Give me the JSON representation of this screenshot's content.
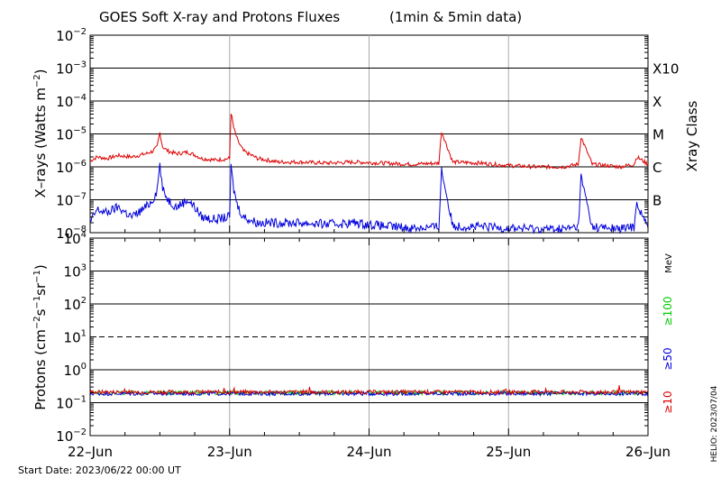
{
  "chart_data": [
    {
      "type": "line",
      "title": "GOES Soft X-ray and Protons Fluxes",
      "title_note": "(1min & 5min data)",
      "ylabel": "X-rays (Watts m^-2)",
      "ylabel_parts": {
        "prefix": "X–rays (Watts m",
        "sup": "−2",
        "suffix": ")"
      },
      "yscale": "log",
      "ylim": [
        1e-08,
        0.01
      ],
      "y_tick_exponents": [
        -8,
        -7,
        -6,
        -5,
        -4,
        -3,
        -2
      ],
      "x_ticks": [
        "22–Jun",
        "23–Jun",
        "24–Jun",
        "25–Jun",
        "26–Jun"
      ],
      "xlim_days": [
        "2023-06-22",
        "2023-06-26"
      ],
      "right_axis_title": "Xray Class",
      "class_labels": [
        {
          "label": "X10",
          "value": 0.001
        },
        {
          "label": "X",
          "value": 0.0001
        },
        {
          "label": "M",
          "value": 1e-05
        },
        {
          "label": "C",
          "value": 1e-06
        },
        {
          "label": "B",
          "value": 1e-07
        }
      ],
      "series": [
        {
          "color": "#dd0000",
          "x_days": [
            0,
            0.05,
            0.12,
            0.2,
            0.3,
            0.4,
            0.45,
            0.48,
            0.5,
            0.52,
            0.56,
            0.62,
            0.7,
            0.75,
            0.8,
            0.9,
            1.0,
            1.01,
            1.03,
            1.06,
            1.1,
            1.2,
            1.35,
            1.5,
            1.7,
            1.9,
            2.1,
            2.3,
            2.5,
            2.52,
            2.6,
            2.8,
            3.0,
            3.2,
            3.4,
            3.5,
            3.52,
            3.6,
            3.8,
            3.9,
            3.92,
            4.0
          ],
          "y": [
            1.5e-06,
            2e-06,
            1.8e-06,
            2.2e-06,
            2e-06,
            2.5e-06,
            3e-06,
            4e-06,
            1.1e-05,
            4e-06,
            3e-06,
            2.5e-06,
            2.8e-06,
            2.3e-06,
            1.8e-06,
            1.6e-06,
            1.8e-06,
            4.5e-05,
            1.5e-05,
            6e-06,
            3e-06,
            1.8e-06,
            1.4e-06,
            1.4e-06,
            1.3e-06,
            1.4e-06,
            1.3e-06,
            1.2e-06,
            1.3e-06,
            1.2e-05,
            1.4e-06,
            1.3e-06,
            1.1e-06,
            1e-06,
            1e-06,
            1.2e-06,
            8e-06,
            1.2e-06,
            1e-06,
            1.2e-06,
            2e-06,
            1.2e-06
          ]
        },
        {
          "color": "#0000dd",
          "x_days": [
            0,
            0.05,
            0.12,
            0.2,
            0.3,
            0.4,
            0.45,
            0.48,
            0.5,
            0.52,
            0.56,
            0.62,
            0.7,
            0.75,
            0.8,
            0.9,
            1.0,
            1.01,
            1.03,
            1.06,
            1.1,
            1.2,
            1.35,
            1.5,
            1.7,
            1.9,
            2.1,
            2.3,
            2.5,
            2.52,
            2.6,
            2.8,
            3.0,
            3.2,
            3.4,
            3.5,
            3.52,
            3.6,
            3.8,
            3.9,
            3.92,
            4.0
          ],
          "y": [
            2e-08,
            5e-08,
            4e-08,
            6e-08,
            3e-08,
            6e-08,
            1e-07,
            2e-07,
            1.2e-06,
            2e-07,
            1e-07,
            6e-08,
            1e-07,
            6e-08,
            3e-08,
            2.5e-08,
            3e-08,
            1e-06,
            2e-07,
            6e-08,
            3e-08,
            2e-08,
            2e-08,
            2e-08,
            1.8e-08,
            2e-08,
            1.6e-08,
            1.4e-08,
            1.5e-08,
            8e-07,
            1.6e-08,
            1.5e-08,
            1.4e-08,
            1.3e-08,
            1.3e-08,
            1.5e-08,
            5e-07,
            1.5e-08,
            1.3e-08,
            1.5e-08,
            8e-08,
            1.4e-08
          ]
        }
      ]
    },
    {
      "type": "line",
      "ylabel": "Protons (cm^-2 s^-1 sr^-1)",
      "ylabel_parts": {
        "prefix": "Protons (cm",
        "sup1": "−2",
        "mid1": "s",
        "sup2": "−1",
        "mid2": "sr",
        "sup3": "−1",
        "suffix": ")"
      },
      "yscale": "log",
      "ylim": [
        0.01,
        10000.0
      ],
      "y_tick_exponents": [
        -2,
        -1,
        0,
        1,
        2,
        3,
        4
      ],
      "threshold_line": 10,
      "energy_unit": "MeV",
      "series": [
        {
          "name": "≥10",
          "color": "#dd0000",
          "value": 0.21
        },
        {
          "name": "≥50",
          "color": "#0000dd",
          "value": 0.19
        },
        {
          "name": "≥100",
          "color": "#00cc00",
          "value": 0.2
        }
      ]
    }
  ],
  "start_date_label": "Start Date: 2023/06/22 00:00 UT",
  "credit_label": "HELIO: 2023/07/04"
}
